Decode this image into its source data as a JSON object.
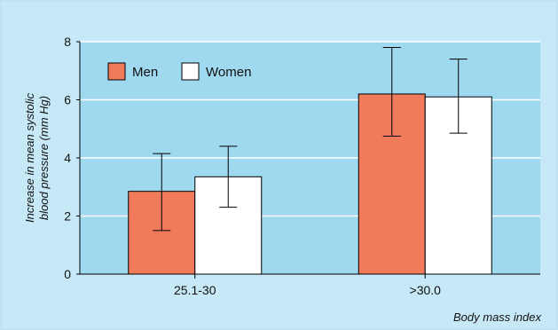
{
  "chart_data": {
    "type": "bar",
    "categories": [
      "25.1-30",
      ">30.0"
    ],
    "series": [
      {
        "name": "Men",
        "values": [
          2.85,
          6.2
        ],
        "error_low": [
          1.5,
          4.75
        ],
        "error_high": [
          4.15,
          7.8
        ],
        "color": "#f07b5b"
      },
      {
        "name": "Women",
        "values": [
          3.35,
          6.1
        ],
        "error_low": [
          2.3,
          4.85
        ],
        "error_high": [
          4.4,
          7.4
        ],
        "color": "#ffffff"
      }
    ],
    "title": "",
    "xlabel": "Body mass index",
    "ylabel_lines": [
      "Increase in mean systolic",
      "blood pressure (mm Hg)"
    ],
    "ylim": [
      0,
      8
    ],
    "yticks": [
      0,
      2,
      4,
      6,
      8
    ],
    "grid": "horizontal",
    "legend": "top-left"
  },
  "colors": {
    "panel_background": "#c6e8f7",
    "plot_background": "#9fd9f0",
    "gridline": "#ffffff"
  }
}
